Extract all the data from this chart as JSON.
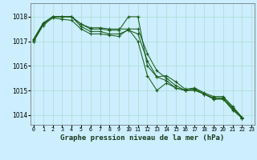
{
  "title": "Graphe pression niveau de la mer (hPa)",
  "background_color": "#cceeff",
  "grid_color": "#aaddcc",
  "line_color": "#1a5c1a",
  "series": [
    {
      "x": [
        0,
        1,
        2,
        3,
        4,
        5,
        6,
        7,
        8,
        9,
        10,
        11,
        12,
        13,
        14,
        15,
        16,
        17,
        18,
        19,
        20,
        21,
        22,
        23
      ],
      "y": [
        1017.1,
        1017.75,
        1018.0,
        1018.0,
        1018.0,
        1017.7,
        1017.55,
        1017.55,
        1017.5,
        1017.5,
        1017.5,
        1017.5,
        1016.5,
        1015.8,
        1015.5,
        1015.2,
        1015.0,
        1015.05,
        1014.85,
        1014.7,
        1014.7,
        1014.3,
        1013.9,
        null
      ]
    },
    {
      "x": [
        0,
        1,
        2,
        3,
        4,
        5,
        6,
        7,
        8,
        9,
        10,
        11,
        12,
        13,
        14,
        15,
        16,
        17,
        18,
        19,
        20,
        21,
        22,
        23
      ],
      "y": [
        1017.0,
        1017.7,
        1018.0,
        1018.0,
        1018.0,
        1017.6,
        1017.4,
        1017.4,
        1017.3,
        1017.3,
        1017.45,
        1017.3,
        1016.2,
        1015.55,
        1015.4,
        1015.1,
        1015.0,
        1015.0,
        1014.85,
        1014.65,
        1014.65,
        1014.2,
        1013.87,
        null
      ]
    },
    {
      "x": [
        0,
        1,
        2,
        3,
        4,
        5,
        6,
        7,
        8,
        9,
        10,
        11,
        12,
        13,
        14,
        15,
        16,
        17,
        18,
        19,
        20,
        21,
        22,
        23
      ],
      "y": [
        1017.05,
        1017.7,
        1018.0,
        1018.0,
        1018.0,
        1017.7,
        1017.5,
        1017.5,
        1017.45,
        1017.45,
        1018.0,
        1018.0,
        1016.0,
        1015.55,
        1015.6,
        1015.35,
        1015.05,
        1015.1,
        1014.9,
        1014.75,
        1014.75,
        1014.35,
        1013.9,
        null
      ]
    },
    {
      "x": [
        0,
        1,
        2,
        3,
        4,
        5,
        6,
        7,
        8,
        9,
        10,
        11,
        12,
        13,
        14,
        15,
        16,
        17,
        18,
        19,
        20,
        21,
        22,
        23
      ],
      "y": [
        1017.0,
        1017.65,
        1017.95,
        1017.9,
        1017.85,
        1017.5,
        1017.3,
        1017.3,
        1017.25,
        1017.2,
        1017.5,
        1017.0,
        1015.6,
        1015.0,
        1015.3,
        1015.1,
        1015.0,
        1015.05,
        1014.85,
        1014.65,
        1014.65,
        1014.25,
        1013.87,
        null
      ]
    }
  ],
  "ylim": [
    1013.6,
    1018.55
  ],
  "yticks": [
    1014,
    1015,
    1016,
    1017,
    1018
  ],
  "xticks": [
    0,
    1,
    2,
    3,
    4,
    5,
    6,
    7,
    8,
    9,
    10,
    11,
    12,
    13,
    14,
    15,
    16,
    17,
    18,
    19,
    20,
    21,
    22,
    23
  ],
  "xlim": [
    -0.3,
    23.3
  ],
  "title_fontsize": 6.5,
  "ytick_fontsize": 5.5,
  "xtick_fontsize": 4.8,
  "line_width": 0.75,
  "marker_size": 3.5,
  "marker_ew": 0.8
}
